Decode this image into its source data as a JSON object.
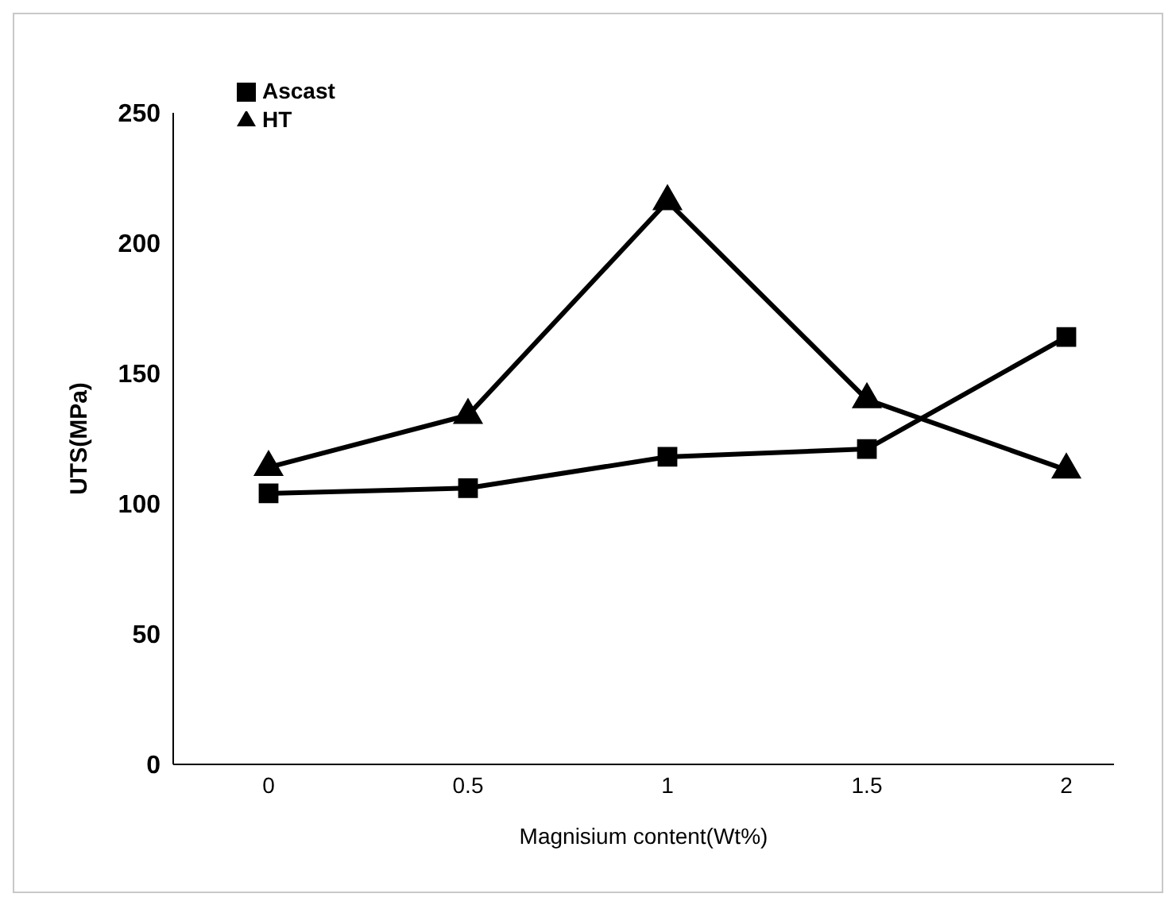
{
  "chart_data": {
    "type": "line",
    "xlabel": "Magnisium content(Wt%)",
    "ylabel": "UTS(MPa)",
    "categories": [
      "0",
      "0.5",
      "1",
      "1.5",
      "2"
    ],
    "series": [
      {
        "name": "Ascast",
        "color": "#000000",
        "marker": "square",
        "values": [
          104,
          106,
          118,
          121,
          164
        ]
      },
      {
        "name": "HT",
        "color": "#000000",
        "marker": "triangle",
        "values": [
          114,
          134,
          216,
          140,
          113
        ]
      }
    ],
    "ylim": [
      0,
      250
    ],
    "yticks": [
      0,
      50,
      100,
      150,
      200,
      250
    ],
    "grid": false,
    "legend": "top left"
  }
}
